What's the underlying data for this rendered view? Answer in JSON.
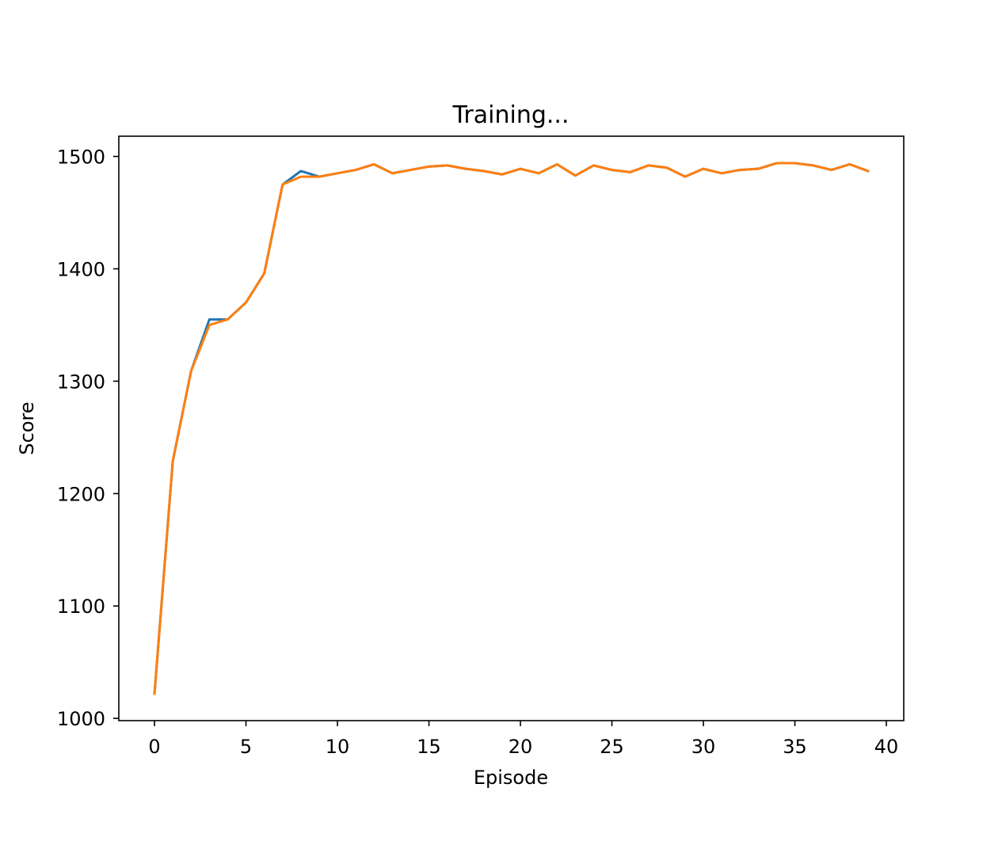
{
  "chart_data": {
    "type": "line",
    "title": "Training...",
    "xlabel": "Episode",
    "ylabel": "Score",
    "xlim": [
      -1.95,
      40.95
    ],
    "ylim": [
      998,
      1518
    ],
    "xticks": [
      0,
      5,
      10,
      15,
      20,
      25,
      30,
      35,
      40
    ],
    "yticks": [
      1000,
      1100,
      1200,
      1300,
      1400,
      1500
    ],
    "grid": false,
    "legend": "none",
    "x": [
      0,
      1,
      2,
      3,
      4,
      5,
      6,
      7,
      8,
      9,
      10,
      11,
      12,
      13,
      14,
      15,
      16,
      17,
      18,
      19,
      20,
      21,
      22,
      23,
      24,
      25,
      26,
      27,
      28,
      29,
      30,
      31,
      32,
      33,
      34,
      35,
      36,
      37,
      38,
      39
    ],
    "series": [
      {
        "color": "#1f77b4",
        "values": [
          1022,
          1229,
          1309,
          1355,
          1355,
          1370,
          1396,
          1475,
          1487,
          1482,
          1485,
          1488,
          1493,
          1485,
          1488,
          1491,
          1492,
          1489,
          1487,
          1484,
          1489,
          1485,
          1493,
          1483,
          1492,
          1488,
          1486,
          1492,
          1490,
          1482,
          1489,
          1485,
          1488,
          1489,
          1494,
          1494,
          1492,
          1488,
          1493,
          1487
        ]
      },
      {
        "color": "#ff7f0e",
        "values": [
          1022,
          1229,
          1309,
          1350,
          1355,
          1370,
          1396,
          1475,
          1482,
          1482,
          1485,
          1488,
          1493,
          1485,
          1488,
          1491,
          1492,
          1489,
          1487,
          1484,
          1489,
          1485,
          1493,
          1483,
          1492,
          1488,
          1486,
          1492,
          1490,
          1482,
          1489,
          1485,
          1488,
          1489,
          1494,
          1494,
          1492,
          1488,
          1493,
          1487
        ]
      }
    ]
  }
}
